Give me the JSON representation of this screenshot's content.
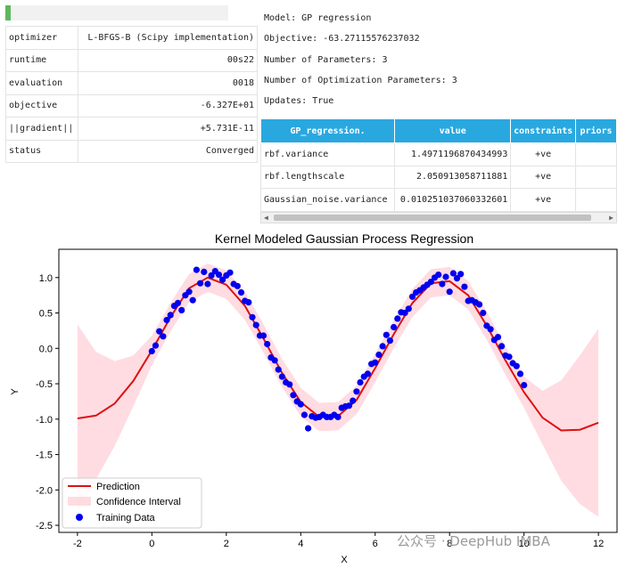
{
  "progress": {
    "fraction": 0.025
  },
  "optimizer_table": [
    {
      "key": "optimizer",
      "value": "L-BFGS-B (Scipy implementation)"
    },
    {
      "key": "runtime",
      "value": "00s22"
    },
    {
      "key": "evaluation",
      "value": "0018"
    },
    {
      "key": "objective",
      "value": "-6.327E+01"
    },
    {
      "key": "||gradient||",
      "value": "+5.731E-11"
    },
    {
      "key": "status",
      "value": "Converged"
    }
  ],
  "model_info": {
    "model": "Model: GP regression",
    "objective": "Objective: -63.27115576237032",
    "num_params": "Number of Parameters: 3",
    "num_opt_params": "Number of Optimization Parameters: 3",
    "updates": "Updates: True"
  },
  "param_table": {
    "headers": [
      "GP_regression.",
      "value",
      "constraints",
      "priors"
    ],
    "rows": [
      [
        "rbf.variance",
        "1.4971196870434993",
        "+ve",
        ""
      ],
      [
        "rbf.lengthscale",
        "2.050913058711881",
        "+ve",
        ""
      ],
      [
        "Gaussian_noise.variance",
        "0.010251037060332601",
        "+ve",
        ""
      ]
    ]
  },
  "colors": {
    "header_bg": "#29a8e0",
    "prediction": "#dd1111",
    "ci_fill": "#ffc0cb",
    "points": "#0000ee"
  },
  "watermark": "公众号 · DeepHub IMBA",
  "chart_data": {
    "type": "line",
    "title": "Kernel Modeled Gaussian Process Regression",
    "xlabel": "X",
    "ylabel": "Y",
    "xlim": [
      -2.5,
      12.5
    ],
    "ylim": [
      -2.6,
      1.4
    ],
    "xticks": [
      -2,
      0,
      2,
      4,
      6,
      8,
      10,
      12
    ],
    "yticks": [
      -2.5,
      -2.0,
      -1.5,
      -1.0,
      -0.5,
      0.0,
      0.5,
      1.0
    ],
    "legend": {
      "position": "lower-left",
      "entries": [
        "Prediction",
        "Confidence Interval",
        "Training Data"
      ]
    },
    "prediction": {
      "x": [
        -2,
        -1.5,
        -1,
        -0.5,
        0,
        0.5,
        1,
        1.5,
        2,
        2.5,
        3,
        3.5,
        4,
        4.5,
        5,
        5.5,
        6,
        6.5,
        7,
        7.5,
        8,
        8.5,
        9,
        9.5,
        10,
        10.5,
        11,
        11.5,
        12
      ],
      "y": [
        -0.99,
        -0.95,
        -0.78,
        -0.46,
        -0.03,
        0.44,
        0.85,
        1.0,
        0.9,
        0.6,
        0.14,
        -0.35,
        -0.76,
        -0.97,
        -0.96,
        -0.73,
        -0.28,
        0.2,
        0.64,
        0.92,
        0.95,
        0.75,
        0.32,
        -0.17,
        -0.62,
        -0.98,
        -1.16,
        -1.15,
        -1.05
      ]
    },
    "ci_upper": [
      0.34,
      -0.05,
      -0.18,
      -0.1,
      0.18,
      0.64,
      1.05,
      1.2,
      1.1,
      0.8,
      0.34,
      -0.15,
      -0.56,
      -0.77,
      -0.76,
      -0.53,
      -0.08,
      0.4,
      0.84,
      1.12,
      1.15,
      0.95,
      0.52,
      0.03,
      -0.4,
      -0.6,
      -0.45,
      -0.1,
      0.28
    ],
    "ci_lower": [
      -2.32,
      -1.85,
      -1.38,
      -0.82,
      -0.24,
      0.24,
      0.65,
      0.8,
      0.7,
      0.4,
      -0.06,
      -0.55,
      -0.96,
      -1.17,
      -1.16,
      -0.93,
      -0.48,
      0.0,
      0.44,
      0.72,
      0.75,
      0.55,
      0.12,
      -0.37,
      -0.84,
      -1.36,
      -1.87,
      -2.2,
      -2.38
    ],
    "training_data": {
      "x": [
        0,
        0.1,
        0.2,
        0.3,
        0.4,
        0.5,
        0.6,
        0.7,
        0.8,
        0.9,
        1.0,
        1.1,
        1.2,
        1.3,
        1.4,
        1.5,
        1.6,
        1.7,
        1.8,
        1.9,
        2.0,
        2.1,
        2.2,
        2.3,
        2.4,
        2.5,
        2.6,
        2.7,
        2.8,
        2.9,
        3.0,
        3.1,
        3.2,
        3.3,
        3.4,
        3.5,
        3.6,
        3.7,
        3.8,
        3.9,
        4.0,
        4.1,
        4.2,
        4.3,
        4.4,
        4.5,
        4.6,
        4.7,
        4.8,
        4.9,
        5.0,
        5.1,
        5.2,
        5.3,
        5.4,
        5.5,
        5.6,
        5.7,
        5.8,
        5.9,
        6.0,
        6.1,
        6.2,
        6.3,
        6.4,
        6.5,
        6.6,
        6.7,
        6.8,
        6.9,
        7.0,
        7.1,
        7.2,
        7.3,
        7.4,
        7.5,
        7.6,
        7.7,
        7.8,
        7.9,
        8.0,
        8.1,
        8.2,
        8.3,
        8.4,
        8.5,
        8.6,
        8.7,
        8.8,
        8.9,
        9.0,
        9.1,
        9.2,
        9.3,
        9.4,
        9.5,
        9.6,
        9.7,
        9.8,
        9.9,
        10.0
      ],
      "y": [
        -0.04,
        0.04,
        0.24,
        0.17,
        0.4,
        0.47,
        0.6,
        0.64,
        0.54,
        0.75,
        0.8,
        0.68,
        1.11,
        0.92,
        1.08,
        0.91,
        1.03,
        1.09,
        1.04,
        0.97,
        1.03,
        1.07,
        0.91,
        0.88,
        0.79,
        0.67,
        0.65,
        0.44,
        0.33,
        0.18,
        0.18,
        0.06,
        -0.13,
        -0.17,
        -0.3,
        -0.4,
        -0.48,
        -0.51,
        -0.66,
        -0.75,
        -0.79,
        -0.94,
        -1.13,
        -0.96,
        -0.98,
        -0.97,
        -0.94,
        -0.97,
        -0.97,
        -0.94,
        -0.97,
        -0.84,
        -0.82,
        -0.81,
        -0.74,
        -0.61,
        -0.48,
        -0.4,
        -0.36,
        -0.22,
        -0.2,
        -0.09,
        0.03,
        0.19,
        0.11,
        0.3,
        0.42,
        0.51,
        0.5,
        0.56,
        0.73,
        0.79,
        0.82,
        0.86,
        0.9,
        0.94,
        1.0,
        1.04,
        0.91,
        1.01,
        0.8,
        1.06,
        0.99,
        1.05,
        0.87,
        0.67,
        0.68,
        0.65,
        0.62,
        0.5,
        0.32,
        0.27,
        0.12,
        0.16,
        0.03,
        -0.1,
        -0.12,
        -0.21,
        -0.25,
        -0.36,
        -0.52
      ]
    }
  }
}
